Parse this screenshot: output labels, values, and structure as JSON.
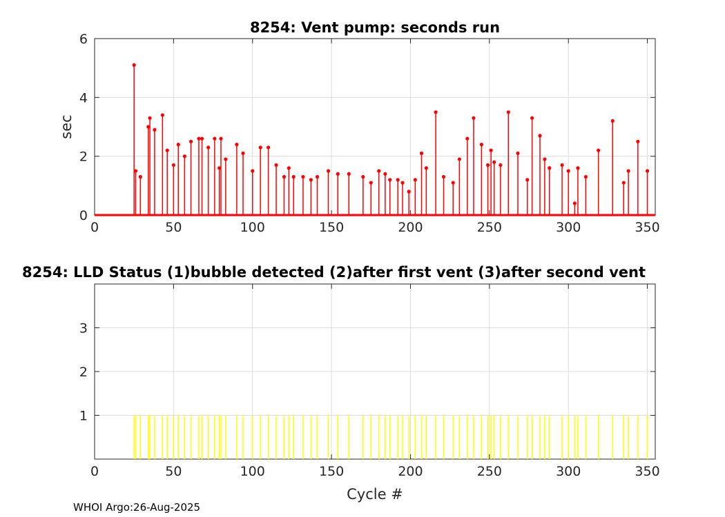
{
  "footer": "WHOI Argo:26-Aug-2025",
  "colors": {
    "pump": "#ff0000",
    "status": "#ffff00",
    "grid": "#dcdcdc",
    "axis": "#262626"
  },
  "chart_data": [
    {
      "type": "stem",
      "title": "8254: Vent pump: seconds run",
      "xlabel": "",
      "ylabel": "sec",
      "xlim": [
        0,
        355
      ],
      "ylim": [
        0,
        6
      ],
      "xticks": [
        0,
        50,
        100,
        150,
        200,
        250,
        300,
        350
      ],
      "yticks": [
        0,
        2,
        4,
        6
      ],
      "grid": true,
      "baseline_zero_from_x": [
        0,
        355
      ],
      "points": [
        [
          25,
          5.1
        ],
        [
          26,
          1.5
        ],
        [
          29,
          1.3
        ],
        [
          34,
          3.0
        ],
        [
          35,
          3.3
        ],
        [
          38,
          2.9
        ],
        [
          43,
          3.4
        ],
        [
          46,
          2.2
        ],
        [
          50,
          1.7
        ],
        [
          53,
          2.4
        ],
        [
          57,
          2.0
        ],
        [
          61,
          2.5
        ],
        [
          66,
          2.6
        ],
        [
          68,
          2.6
        ],
        [
          72,
          2.3
        ],
        [
          76,
          2.6
        ],
        [
          79,
          1.6
        ],
        [
          80,
          2.6
        ],
        [
          83,
          1.9
        ],
        [
          90,
          2.4
        ],
        [
          94,
          2.1
        ],
        [
          100,
          1.5
        ],
        [
          105,
          2.3
        ],
        [
          110,
          2.3
        ],
        [
          115,
          1.7
        ],
        [
          120,
          1.3
        ],
        [
          123,
          1.6
        ],
        [
          126,
          1.3
        ],
        [
          132,
          1.3
        ],
        [
          137,
          1.2
        ],
        [
          141,
          1.3
        ],
        [
          148,
          1.5
        ],
        [
          154,
          1.4
        ],
        [
          161,
          1.4
        ],
        [
          170,
          1.3
        ],
        [
          175,
          1.1
        ],
        [
          180,
          1.5
        ],
        [
          184,
          1.4
        ],
        [
          187,
          1.2
        ],
        [
          192,
          1.2
        ],
        [
          195,
          1.1
        ],
        [
          199,
          0.8
        ],
        [
          203,
          1.2
        ],
        [
          207,
          2.1
        ],
        [
          210,
          1.6
        ],
        [
          216,
          3.5
        ],
        [
          221,
          1.3
        ],
        [
          227,
          1.1
        ],
        [
          231,
          1.9
        ],
        [
          236,
          2.6
        ],
        [
          240,
          3.3
        ],
        [
          245,
          2.4
        ],
        [
          249,
          1.7
        ],
        [
          251,
          2.2
        ],
        [
          253,
          1.8
        ],
        [
          257,
          1.7
        ],
        [
          262,
          3.5
        ],
        [
          268,
          2.1
        ],
        [
          274,
          1.2
        ],
        [
          277,
          3.3
        ],
        [
          282,
          2.7
        ],
        [
          285,
          1.9
        ],
        [
          288,
          1.6
        ],
        [
          296,
          1.7
        ],
        [
          300,
          1.5
        ],
        [
          304,
          0.4
        ],
        [
          306,
          1.6
        ],
        [
          311,
          1.3
        ],
        [
          319,
          2.2
        ],
        [
          328,
          3.2
        ],
        [
          335,
          1.1
        ],
        [
          338,
          1.5
        ],
        [
          344,
          2.5
        ],
        [
          350,
          1.5
        ]
      ]
    },
    {
      "type": "stem",
      "title": "8254: LLD Status   (1)bubble detected   (2)after first vent  (3)after second vent",
      "xlabel": "Cycle #",
      "ylabel": "",
      "xlim": [
        0,
        355
      ],
      "ylim": [
        0,
        4
      ],
      "xticks": [
        0,
        50,
        100,
        150,
        200,
        250,
        300,
        350
      ],
      "yticks": [
        1,
        2,
        3
      ],
      "grid": true,
      "value": 1,
      "x": [
        25,
        26,
        29,
        34,
        35,
        38,
        43,
        46,
        50,
        53,
        57,
        61,
        66,
        68,
        72,
        76,
        79,
        80,
        83,
        90,
        94,
        100,
        105,
        110,
        115,
        120,
        123,
        126,
        132,
        137,
        141,
        148,
        154,
        161,
        170,
        175,
        180,
        184,
        187,
        192,
        195,
        199,
        203,
        207,
        210,
        216,
        221,
        227,
        231,
        236,
        240,
        245,
        249,
        251,
        253,
        257,
        262,
        268,
        274,
        277,
        282,
        285,
        288,
        296,
        300,
        304,
        306,
        311,
        319,
        328,
        335,
        338,
        344,
        350
      ]
    }
  ]
}
